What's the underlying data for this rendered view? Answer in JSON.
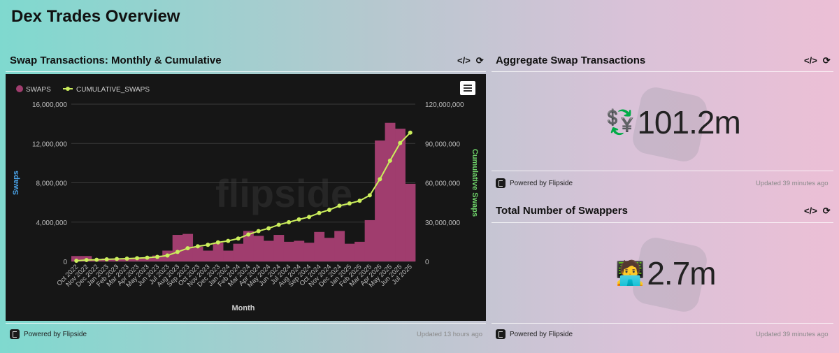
{
  "page": {
    "title": "Dex Trades Overview"
  },
  "panels": {
    "chart": {
      "title": "Swap Transactions: Monthly & Cumulative",
      "powered": "Powered by Flipside",
      "updated": "Updated 13 hours ago"
    },
    "aggregate": {
      "title": "Aggregate Swap Transactions",
      "value": "101.2m",
      "icon": "💱",
      "powered": "Powered by Flipside",
      "updated": "Updated 39 minutes ago"
    },
    "swappers": {
      "title": "Total Number of Swappers",
      "value": "2.7m",
      "icon": "🧑‍💻",
      "powered": "Powered by Flipside",
      "updated": "Updated 39 minutes ago"
    }
  },
  "toolbar": {
    "embed_label": "</>",
    "refresh_label": "⟳"
  },
  "colors": {
    "bars": "#a03d6e",
    "line": "#cbee5c",
    "left_axis": "#4aa3e8",
    "right_axis": "#6fd36a",
    "chart_bg": "#161616"
  },
  "chart_data": {
    "type": "bar",
    "watermark": "flipside",
    "categories": [
      "Oct 2022",
      "Nov 2022",
      "Dec 2022",
      "Jan 2023",
      "Feb 2023",
      "Mar 2023",
      "Apr 2023",
      "May 2023",
      "Jun 2023",
      "Jul 2023",
      "Aug 2023",
      "Sep 2023",
      "Oct 2023",
      "Nov 2023",
      "Dec 2023",
      "Jan 2024",
      "Feb 2024",
      "Mar 2024",
      "Apr 2024",
      "May 2024",
      "Jun 2024",
      "Jul 2024",
      "Aug 2024",
      "Sep 2024",
      "Oct 2024",
      "Nov 2024",
      "Dec 2024",
      "Jan 2025",
      "Feb 2025",
      "Mar 2025",
      "Apr 2025",
      "May 2025",
      "Jun 2025",
      "Jul 2025"
    ],
    "tick_labels": [
      "Oct 2022",
      "Nov 2022",
      "Dec 2022",
      "Jan 2023",
      "Feb 2023",
      "Mar 2023",
      "Apr 2023",
      "May 2023",
      "Jun 2023",
      "Jul 2023",
      "Aug 2023",
      "Sep 2023",
      "Oct 2023",
      "Nov 2023",
      "Dec 2023",
      "Jan 2024",
      "Feb 2024",
      "Mar 2024",
      "Apr 2024",
      "May 2024",
      "Jun 2024",
      "Jul 2024",
      "Aug 2024",
      "Sep 2024",
      "Oct 2024",
      "Nov 2024",
      "Dec 2024",
      "Jan 2025",
      "Feb 2025",
      "Mar 2025",
      "Apr 2025",
      "May 2025",
      "Jun 2025",
      "Jul 2025"
    ],
    "series": [
      {
        "name": "SWAPS",
        "axis": "left",
        "type": "bar",
        "values": [
          550000,
          550000,
          200000,
          300000,
          300000,
          250000,
          300000,
          400000,
          600000,
          1100000,
          2700000,
          2800000,
          1500000,
          1100000,
          1900000,
          1100000,
          1800000,
          3100000,
          2600000,
          2100000,
          2700000,
          2000000,
          2100000,
          1900000,
          3000000,
          2400000,
          3100000,
          1800000,
          2000000,
          4200000,
          12300000,
          14100000,
          13500000,
          7900000
        ]
      },
      {
        "name": "CUMULATIVE_SWAPS",
        "axis": "right",
        "type": "line",
        "values": [
          550000,
          1100000,
          1300000,
          1600000,
          1900000,
          2150000,
          2450000,
          2850000,
          3450000,
          4550000,
          7250000,
          10050000,
          11550000,
          12650000,
          14550000,
          15650000,
          17450000,
          20550000,
          23150000,
          25250000,
          27950000,
          29950000,
          32050000,
          33950000,
          36950000,
          39350000,
          42450000,
          44250000,
          46250000,
          50450000,
          62750000,
          76850000,
          90350000,
          98250000
        ]
      }
    ],
    "xlabel": "Month",
    "ylabel": "Swaps",
    "y2label": "Cumulative Swaps",
    "ylim": [
      0,
      16000000
    ],
    "y2lim": [
      0,
      120000000
    ],
    "yticks": [
      "0",
      "4,000,000",
      "8,000,000",
      "12,000,000",
      "16,000,000"
    ],
    "y2ticks": [
      "0",
      "30,000,000",
      "60,000,000",
      "90,000,000",
      "120,000,000"
    ],
    "legend": "top-left",
    "grid": true
  }
}
